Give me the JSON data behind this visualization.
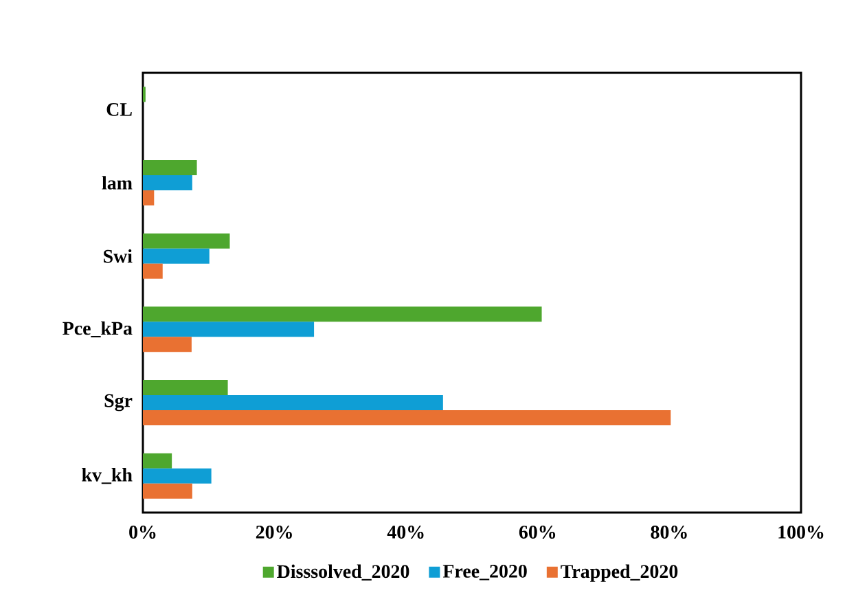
{
  "chart_data": {
    "type": "bar",
    "orientation": "horizontal",
    "categories": [
      "CL",
      "lam",
      "Swi",
      "Pce_kPa",
      "Sgr",
      "kv_kh"
    ],
    "series": [
      {
        "name": "Disssolved_2020",
        "color": "#4ea72e",
        "values": [
          0.4,
          8.2,
          13.2,
          60.6,
          12.9,
          4.4
        ]
      },
      {
        "name": "Free_2020",
        "color": "#0f9ed5",
        "values": [
          0,
          7.5,
          10.1,
          26,
          45.6,
          10.4
        ]
      },
      {
        "name": "Trapped_2020",
        "color": "#e97132",
        "values": [
          0,
          1.7,
          3.0,
          7.4,
          80.2,
          7.5
        ]
      }
    ],
    "xlim": [
      0,
      100
    ],
    "xticks": [
      {
        "value": 0,
        "label": "0%"
      },
      {
        "value": 20,
        "label": "20%"
      },
      {
        "value": 40,
        "label": "40%"
      },
      {
        "value": 60,
        "label": "60%"
      },
      {
        "value": 80,
        "label": "80%"
      },
      {
        "value": 100,
        "label": "100%"
      }
    ],
    "legend": "bottom",
    "grid": false
  }
}
